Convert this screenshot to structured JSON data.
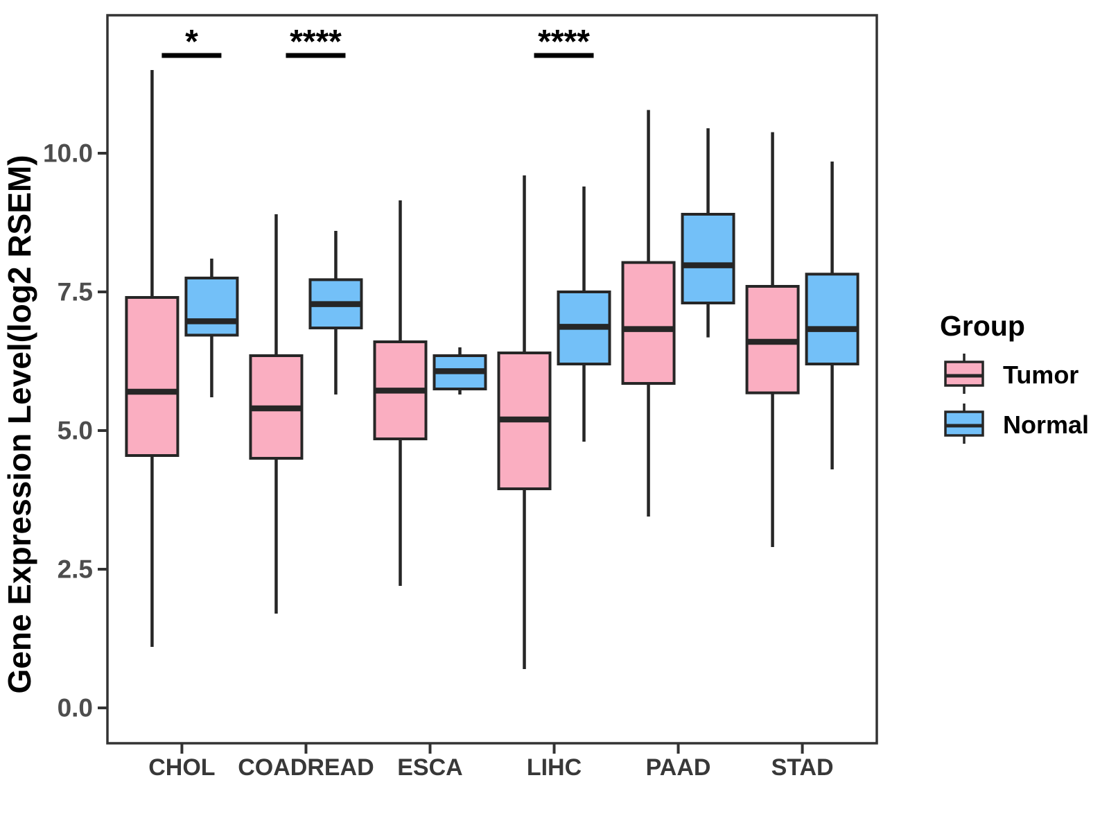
{
  "figure": {
    "y_axis_title": "Gene Expression Level(log2 RSEM)"
  },
  "chart_data": {
    "type": "grouped_boxplot",
    "title": "",
    "xlabel": "",
    "ylabel": "Gene Expression Level(log2 RSEM)",
    "ylim": [
      -0.65,
      12.5
    ],
    "y_ticks": [
      0.0,
      2.5,
      5.0,
      7.5,
      10.0
    ],
    "y_tick_labels": [
      "0.0",
      "2.5",
      "5.0",
      "7.5",
      "10.0"
    ],
    "grid": "off",
    "categories": [
      "CHOL",
      "COADREAD",
      "ESCA",
      "LIHC",
      "PAAD",
      "STAD"
    ],
    "series": [
      {
        "name": "Tumor",
        "color": "#FAAEC1",
        "boxes": [
          {
            "category": "CHOL",
            "min": 1.1,
            "q1": 4.55,
            "median": 5.7,
            "q3": 7.4,
            "max": 11.5
          },
          {
            "category": "COADREAD",
            "min": 1.7,
            "q1": 4.5,
            "median": 5.4,
            "q3": 6.35,
            "max": 8.9
          },
          {
            "category": "ESCA",
            "min": 2.2,
            "q1": 4.85,
            "median": 5.72,
            "q3": 6.6,
            "max": 9.15
          },
          {
            "category": "LIHC",
            "min": 0.7,
            "q1": 3.95,
            "median": 5.2,
            "q3": 6.4,
            "max": 9.6
          },
          {
            "category": "PAAD",
            "min": 3.45,
            "q1": 5.85,
            "median": 6.83,
            "q3": 8.03,
            "max": 10.78
          },
          {
            "category": "STAD",
            "min": 2.9,
            "q1": 5.68,
            "median": 6.6,
            "q3": 7.6,
            "max": 10.38
          }
        ]
      },
      {
        "name": "Normal",
        "color": "#73C0F8",
        "boxes": [
          {
            "category": "CHOL",
            "min": 5.6,
            "q1": 6.72,
            "median": 6.97,
            "q3": 7.75,
            "max": 8.1
          },
          {
            "category": "COADREAD",
            "min": 5.65,
            "q1": 6.85,
            "median": 7.28,
            "q3": 7.72,
            "max": 8.6
          },
          {
            "category": "ESCA",
            "min": 5.65,
            "q1": 5.75,
            "median": 6.07,
            "q3": 6.35,
            "max": 6.5
          },
          {
            "category": "LIHC",
            "min": 4.8,
            "q1": 6.2,
            "median": 6.87,
            "q3": 7.5,
            "max": 9.4
          },
          {
            "category": "PAAD",
            "min": 6.68,
            "q1": 7.3,
            "median": 7.98,
            "q3": 8.9,
            "max": 10.45
          },
          {
            "category": "STAD",
            "min": 4.3,
            "q1": 6.2,
            "median": 6.83,
            "q3": 7.82,
            "max": 9.85
          }
        ]
      }
    ],
    "significance": [
      {
        "category": "CHOL",
        "label": "*"
      },
      {
        "category": "COADREAD",
        "label": "****"
      },
      {
        "category": "LIHC",
        "label": "****"
      }
    ],
    "legend": {
      "title": "Group",
      "position": "right",
      "entries": [
        "Tumor",
        "Normal"
      ]
    }
  },
  "colors": {
    "tumor_fill": "#FAAEC1",
    "normal_fill": "#73C0F8",
    "box_stroke": "#262626",
    "panel_border": "#333333",
    "tick_text": "#4d4d4d"
  }
}
